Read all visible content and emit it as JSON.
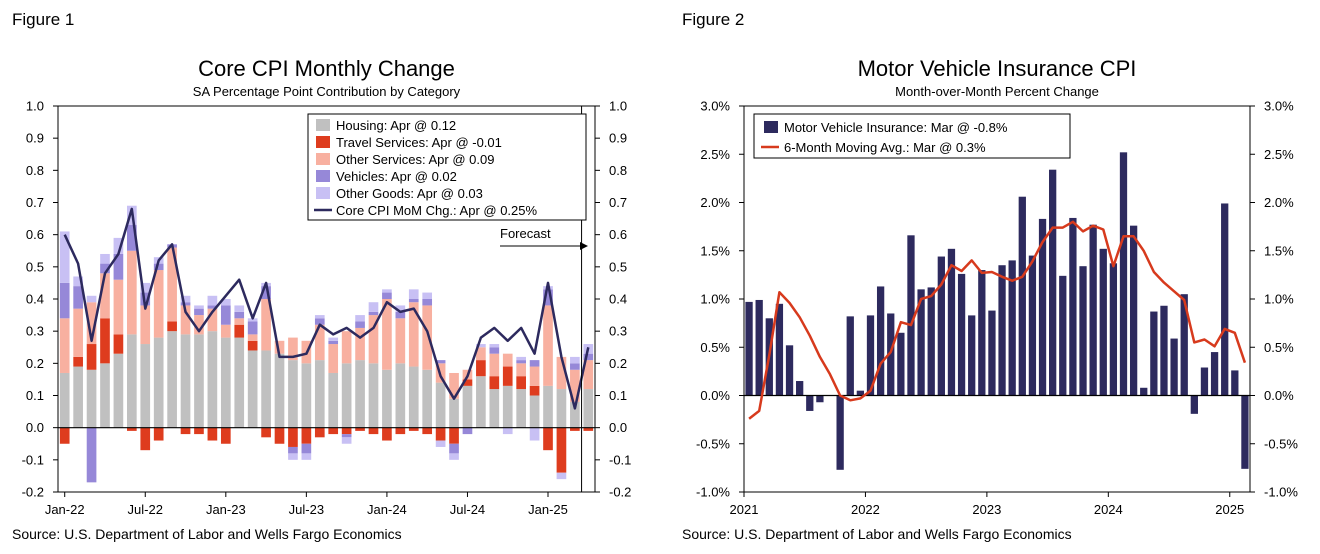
{
  "figure1": {
    "label": "Figure 1",
    "source": "Source: U.S. Department of Labor and Wells Fargo Economics"
  },
  "figure2": {
    "label": "Figure 2",
    "source": "Source: U.S. Department of Labor and Wells Fargo Economics"
  },
  "colors": {
    "housing": "#c0c0c0",
    "travel": "#de3c1e",
    "other_services": "#f8b0a0",
    "vehicles": "#9688d8",
    "other_goods": "#c8c0f4",
    "line": "#2d2a5e",
    "mvi_bar": "#2d2a5e",
    "mvi_line": "#d73a1d"
  },
  "chart_data": [
    {
      "type": "bar",
      "stacked": true,
      "title": "Core CPI Monthly Change",
      "subtitle": "SA Percentage Point Contribution by Category",
      "ylim": [
        -0.2,
        1.0
      ],
      "yticks": [
        "-0.2",
        "-0.1",
        "0.0",
        "0.1",
        "0.2",
        "0.3",
        "0.4",
        "0.5",
        "0.6",
        "0.7",
        "0.8",
        "0.9",
        "1.0"
      ],
      "yticks_right": [
        "-0.2",
        "-0.1",
        "0.0",
        "0.1",
        "0.2",
        "0.3",
        "0.4",
        "0.5",
        "0.6",
        "0.7",
        "0.8",
        "0.9",
        "1.0"
      ],
      "x_tick_labels": [
        "Jan-22",
        "Jul-22",
        "Jan-23",
        "Jul-23",
        "Jan-24",
        "Jul-24",
        "Jan-25"
      ],
      "x_tick_index": [
        0,
        6,
        12,
        18,
        24,
        30,
        36
      ],
      "grid": false,
      "legend_position": "top-right",
      "annotation": "Forecast",
      "series": [
        {
          "name": "Housing: Apr @ 0.12",
          "key": "housing",
          "values": [
            0.17,
            0.19,
            0.18,
            0.2,
            0.23,
            0.29,
            0.26,
            0.28,
            0.3,
            0.29,
            0.29,
            0.3,
            0.28,
            0.28,
            0.24,
            0.24,
            0.23,
            0.21,
            0.2,
            0.21,
            0.17,
            0.2,
            0.21,
            0.2,
            0.18,
            0.2,
            0.19,
            0.18,
            0.14,
            0.09,
            0.13,
            0.16,
            0.12,
            0.13,
            0.12,
            0.1,
            0.13,
            0.12,
            0.08,
            0.12
          ]
        },
        {
          "name": "Travel Services: Apr @ -0.01",
          "key": "travel",
          "values": [
            -0.05,
            0.03,
            0.08,
            0.14,
            0.06,
            -0.01,
            -0.07,
            -0.04,
            0.03,
            -0.02,
            -0.02,
            -0.04,
            -0.05,
            0.04,
            0.03,
            -0.03,
            -0.05,
            -0.06,
            -0.05,
            -0.03,
            -0.02,
            -0.02,
            -0.01,
            -0.02,
            -0.04,
            -0.02,
            -0.01,
            -0.02,
            -0.04,
            -0.05,
            0.02,
            0.05,
            0.04,
            0.06,
            0.04,
            0.03,
            -0.07,
            -0.14,
            -0.01,
            -0.01
          ]
        },
        {
          "name": "Other Services: Apr @ 0.09",
          "key": "other_services",
          "values": [
            0.17,
            0.15,
            0.13,
            0.14,
            0.17,
            0.26,
            0.12,
            0.21,
            0.23,
            0.09,
            0.06,
            0.07,
            0.04,
            0.02,
            0.02,
            0.16,
            0.04,
            0.07,
            0.07,
            0.11,
            0.09,
            0.1,
            0.1,
            0.15,
            0.22,
            0.14,
            0.2,
            0.2,
            0.06,
            0.08,
            0.03,
            0.04,
            0.07,
            0.04,
            0.04,
            0.06,
            0.25,
            0.1,
            0.1,
            0.09
          ]
        },
        {
          "name": "Vehicles: Apr @ 0.02",
          "key": "vehicles",
          "values": [
            0.11,
            0.07,
            -0.17,
            0.03,
            0.08,
            0.08,
            0.04,
            0.02,
            0.01,
            0.01,
            0.02,
            0.01,
            0.06,
            0.02,
            0.04,
            0.04,
            0.0,
            -0.02,
            -0.03,
            0.02,
            0.01,
            -0.01,
            0.02,
            0.01,
            0.02,
            0.02,
            0.01,
            0.02,
            0.01,
            -0.03,
            -0.02,
            0.0,
            0.02,
            0.0,
            0.01,
            0.02,
            0.05,
            0.0,
            0.02,
            0.02
          ]
        },
        {
          "name": "Other Goods: Apr @ 0.03",
          "key": "other_goods",
          "values": [
            0.16,
            0.03,
            0.02,
            0.03,
            0.05,
            0.06,
            0.03,
            0.02,
            0.0,
            0.02,
            0.01,
            0.03,
            0.02,
            0.02,
            0.01,
            0.01,
            0.0,
            -0.02,
            -0.02,
            0.01,
            0.01,
            -0.02,
            0.02,
            0.03,
            0.01,
            0.02,
            0.03,
            0.02,
            -0.02,
            -0.02,
            0.0,
            0.01,
            0.01,
            -0.02,
            0.01,
            -0.04,
            0.01,
            -0.02,
            0.02,
            0.03
          ]
        },
        {
          "name": "Core CPI MoM Chg.: Apr @ 0.25%",
          "key": "line",
          "kind": "line",
          "values": [
            0.6,
            0.51,
            0.27,
            0.48,
            0.54,
            0.68,
            0.37,
            0.52,
            0.57,
            0.36,
            0.3,
            0.36,
            0.41,
            0.46,
            0.34,
            0.45,
            0.22,
            0.22,
            0.23,
            0.32,
            0.29,
            0.31,
            0.28,
            0.31,
            0.39,
            0.36,
            0.37,
            0.3,
            0.16,
            0.09,
            0.16,
            0.28,
            0.31,
            0.27,
            0.31,
            0.23,
            0.45,
            0.22,
            0.06,
            0.25
          ]
        }
      ]
    },
    {
      "type": "bar",
      "title": "Motor Vehicle Insurance CPI",
      "subtitle": "Month-over-Month Percent Change",
      "ylim": [
        -1.0,
        3.0
      ],
      "yticks": [
        "-1.0%",
        "-0.5%",
        "0.0%",
        "0.5%",
        "1.0%",
        "1.5%",
        "2.0%",
        "2.5%",
        "3.0%"
      ],
      "yticks_right": [
        "-1.0%",
        "-0.5%",
        "0.0%",
        "0.5%",
        "1.0%",
        "1.5%",
        "2.0%",
        "2.5%",
        "3.0%"
      ],
      "x_tick_labels": [
        "2021",
        "2022",
        "2023",
        "2024",
        "2025"
      ],
      "x_tick_index": [
        0,
        12,
        24,
        36,
        48
      ],
      "grid": false,
      "legend_position": "top-left",
      "series": [
        {
          "name": "Motor Vehicle Insurance: Mar @ -0.8%",
          "key": "mvi_bar",
          "values": [
            0.97,
            0.99,
            0.8,
            0.95,
            0.52,
            0.15,
            -0.16,
            -0.07,
            0.0,
            -0.77,
            0.82,
            0.05,
            0.83,
            1.13,
            0.85,
            0.65,
            1.66,
            1.1,
            1.12,
            1.44,
            1.52,
            1.26,
            0.83,
            1.3,
            0.88,
            1.35,
            1.4,
            2.06,
            1.45,
            1.83,
            2.34,
            1.24,
            1.84,
            1.34,
            1.77,
            1.52,
            1.37,
            2.52,
            1.76,
            0.08,
            0.87,
            0.93,
            0.59,
            1.05,
            -0.19,
            0.29,
            0.45,
            1.99,
            0.26,
            -0.76
          ]
        },
        {
          "name": "6-Month Moving Avg.: Mar @ 0.3%",
          "key": "mvi_line",
          "kind": "line",
          "values": [
            -0.24,
            -0.16,
            0.42,
            1.07,
            0.96,
            0.81,
            0.62,
            0.4,
            0.22,
            0.0,
            -0.05,
            -0.03,
            0.05,
            0.33,
            0.45,
            0.76,
            0.73,
            1.0,
            1.03,
            1.15,
            1.35,
            1.29,
            1.4,
            1.27,
            1.28,
            1.23,
            1.19,
            1.23,
            1.39,
            1.59,
            1.74,
            1.74,
            1.8,
            1.7,
            1.76,
            1.72,
            1.34,
            1.65,
            1.65,
            1.5,
            1.28,
            1.17,
            1.08,
            0.99,
            0.55,
            0.58,
            0.51,
            0.69,
            0.65,
            0.34
          ]
        }
      ]
    }
  ]
}
